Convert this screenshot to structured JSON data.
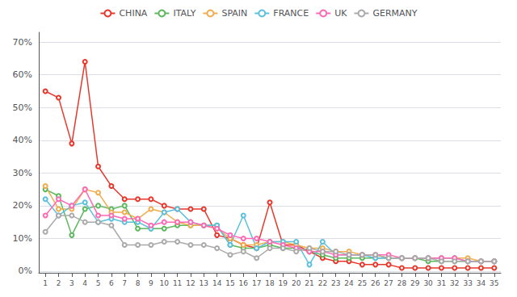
{
  "chart_data": {
    "type": "line",
    "x": [
      1,
      2,
      3,
      4,
      5,
      6,
      7,
      8,
      9,
      10,
      11,
      12,
      13,
      14,
      15,
      16,
      17,
      18,
      19,
      20,
      21,
      22,
      23,
      24,
      25,
      26,
      27,
      28,
      29,
      30,
      31,
      32,
      33,
      34,
      35
    ],
    "series": [
      {
        "name": "CHINA",
        "color": "#e8372a",
        "values": [
          0.55,
          0.53,
          0.39,
          0.64,
          0.32,
          0.26,
          0.22,
          0.22,
          0.22,
          0.2,
          0.19,
          0.19,
          0.19,
          0.11,
          0.1,
          0.08,
          0.07,
          0.21,
          0.08,
          0.08,
          0.06,
          0.04,
          0.03,
          0.03,
          0.02,
          0.02,
          0.02,
          0.01,
          0.01,
          0.01,
          0.01,
          0.01,
          0.01,
          0.01,
          0.01
        ]
      },
      {
        "name": "ITALY",
        "color": "#5cb85c",
        "values": [
          0.25,
          0.23,
          0.11,
          0.19,
          0.2,
          0.19,
          0.2,
          0.13,
          0.13,
          0.13,
          0.14,
          0.14,
          0.14,
          0.14,
          0.08,
          0.07,
          0.07,
          0.08,
          0.07,
          0.07,
          0.06,
          0.05,
          0.04,
          0.04,
          0.04,
          0.04,
          0.04,
          0.04,
          0.04,
          0.03,
          0.03,
          0.03,
          0.03,
          0.03,
          0.03
        ]
      },
      {
        "name": "SPAIN",
        "color": "#f0ad4e",
        "values": [
          0.26,
          0.19,
          0.19,
          0.25,
          0.24,
          0.18,
          0.18,
          0.16,
          0.19,
          0.18,
          0.15,
          0.14,
          0.14,
          0.13,
          0.1,
          0.08,
          0.08,
          0.09,
          0.09,
          0.08,
          0.07,
          0.07,
          0.06,
          0.06,
          0.05,
          0.05,
          0.04,
          0.04,
          0.04,
          0.04,
          0.04,
          0.04,
          0.04,
          0.03,
          0.03
        ]
      },
      {
        "name": "FRANCE",
        "color": "#5bc0de",
        "values": [
          0.22,
          0.17,
          0.2,
          0.21,
          0.15,
          0.16,
          0.15,
          0.15,
          0.13,
          0.18,
          0.19,
          0.15,
          0.14,
          0.14,
          0.08,
          0.17,
          0.07,
          0.09,
          0.09,
          0.09,
          0.02,
          0.09,
          0.05,
          0.05,
          0.05,
          0.04,
          0.04,
          0.04,
          0.04,
          0.04,
          0.04,
          0.04,
          0.03,
          0.03,
          0.03
        ]
      },
      {
        "name": "UK",
        "color": "#ff69b4",
        "values": [
          0.17,
          0.22,
          0.2,
          0.25,
          0.17,
          0.17,
          0.16,
          0.16,
          0.14,
          0.15,
          0.15,
          0.15,
          0.14,
          0.13,
          0.11,
          0.1,
          0.1,
          0.09,
          0.08,
          0.07,
          0.06,
          0.06,
          0.05,
          0.05,
          0.05,
          0.05,
          0.05,
          0.04,
          0.04,
          0.04,
          0.04,
          0.04,
          0.03,
          0.03,
          0.03
        ]
      },
      {
        "name": "GERMANY",
        "color": "#aaaaaa",
        "values": [
          0.12,
          0.17,
          0.17,
          0.15,
          0.15,
          0.14,
          0.08,
          0.08,
          0.08,
          0.09,
          0.09,
          0.08,
          0.08,
          0.07,
          0.05,
          0.06,
          0.04,
          0.07,
          0.07,
          0.06,
          0.07,
          0.06,
          0.06,
          0.05,
          0.05,
          0.05,
          0.04,
          0.04,
          0.04,
          0.04,
          0.03,
          0.03,
          0.03,
          0.03,
          0.03
        ]
      }
    ],
    "xlim": [
      0.5,
      35.5
    ],
    "xticks": [
      1,
      2,
      3,
      4,
      5,
      6,
      7,
      8,
      9,
      10,
      11,
      12,
      13,
      14,
      15,
      16,
      17,
      18,
      19,
      20,
      21,
      22,
      23,
      24,
      25,
      26,
      27,
      28,
      29,
      30,
      31,
      32,
      33,
      34,
      35
    ],
    "ylim": [
      -0.005,
      0.73
    ],
    "yticks": [
      {
        "value": 0,
        "label": "0%"
      },
      {
        "value": 0.1,
        "label": "10%"
      },
      {
        "value": 0.2,
        "label": "20%"
      },
      {
        "value": 0.3,
        "label": "30%"
      },
      {
        "value": 0.4,
        "label": "40%"
      },
      {
        "value": 0.5,
        "label": "50%"
      },
      {
        "value": 0.6,
        "label": "60%"
      },
      {
        "value": 0.7,
        "label": "70%"
      }
    ],
    "grid": true,
    "legend": "top",
    "marker": "circle"
  }
}
